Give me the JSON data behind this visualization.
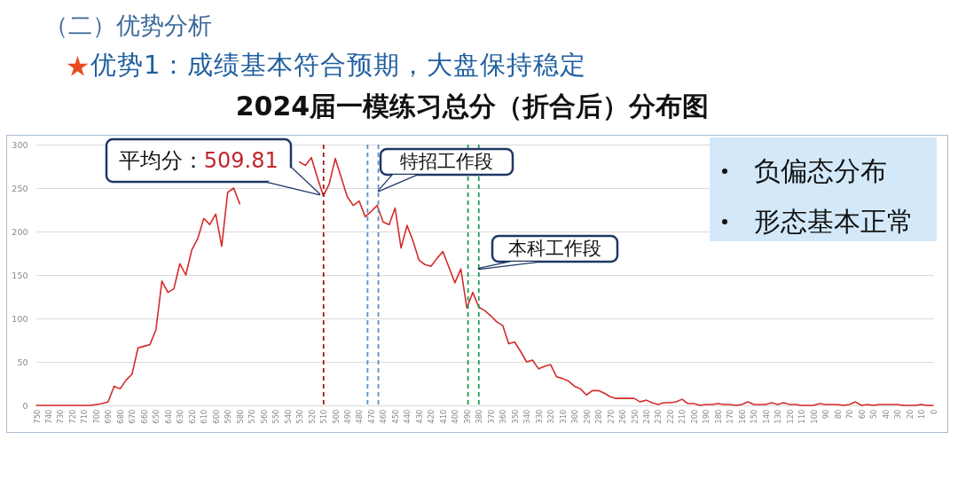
{
  "chart_data": {
    "type": "line",
    "title": "2024届一模练习总分（折合后）分布图",
    "annotations": [
      "（二）优势分析",
      "优势1：成绩基本符合预期，大盘保持稳定",
      "负偏态分布",
      "形态基本正常"
    ],
    "x": [
      750,
      745,
      740,
      735,
      730,
      725,
      720,
      715,
      710,
      705,
      700,
      695,
      690,
      685,
      680,
      675,
      670,
      665,
      660,
      655,
      650,
      645,
      640,
      635,
      630,
      625,
      620,
      615,
      610,
      605,
      600,
      595,
      590,
      585,
      580,
      575,
      570,
      565,
      560,
      555,
      550,
      545,
      540,
      535,
      530,
      525,
      520,
      515,
      510,
      505,
      500,
      495,
      490,
      485,
      480,
      475,
      470,
      465,
      460,
      455,
      450,
      445,
      440,
      435,
      430,
      425,
      420,
      415,
      410,
      405,
      400,
      395,
      390,
      385,
      380,
      375,
      370,
      365,
      360,
      355,
      350,
      345,
      340,
      335,
      330,
      325,
      320,
      315,
      310,
      305,
      300,
      295,
      290,
      285,
      280,
      275,
      270,
      265,
      260,
      255,
      250,
      245,
      240,
      235,
      230,
      225,
      220,
      215,
      210,
      205,
      200,
      195,
      190,
      185,
      180,
      175,
      170,
      165,
      160,
      155,
      150,
      145,
      140,
      135,
      130,
      125,
      120,
      115,
      110,
      105,
      100,
      95,
      90,
      85,
      80,
      75,
      70,
      65,
      60,
      55,
      50,
      45,
      40,
      35,
      30,
      25,
      20,
      15,
      10,
      5,
      0
    ],
    "series": [
      {
        "color": "#d42b2b",
        "values": [
          0,
          0,
          0,
          0,
          0,
          0,
          0,
          0,
          0,
          0,
          1,
          2,
          4,
          22,
          19,
          29,
          36,
          66,
          68,
          70,
          87,
          143,
          130,
          134,
          163,
          150,
          179,
          192,
          215,
          208,
          220,
          183,
          245,
          250,
          232,
          null,
          null,
          null,
          null,
          null,
          null,
          null,
          null,
          null,
          280,
          276,
          285,
          262,
          241,
          255,
          284,
          262,
          240,
          230,
          235,
          217,
          223,
          230,
          211,
          208,
          227,
          181,
          207,
          189,
          167,
          162,
          160,
          169,
          177,
          159,
          141,
          157,
          112,
          130,
          113,
          109,
          103,
          96,
          92,
          71,
          73,
          62,
          50,
          52,
          42,
          45,
          47,
          33,
          31,
          28,
          22,
          19,
          12,
          17,
          17,
          14,
          10,
          8,
          8,
          8,
          8,
          4,
          6,
          3,
          1,
          3,
          3,
          4,
          7,
          2,
          2,
          0,
          1,
          1,
          2,
          1,
          1,
          0,
          1,
          4,
          1,
          1,
          1,
          3,
          1,
          3,
          1,
          1,
          0,
          0,
          0,
          2,
          1,
          1,
          1,
          0,
          1,
          4,
          0,
          1,
          0,
          1,
          1,
          1,
          1,
          0,
          0,
          0,
          1,
          0,
          0
        ]
      }
    ],
    "xlim": [
      750,
      0
    ],
    "xticks": [
      750,
      740,
      730,
      720,
      710,
      700,
      690,
      680,
      670,
      660,
      650,
      640,
      630,
      620,
      610,
      600,
      590,
      580,
      570,
      560,
      550,
      540,
      530,
      520,
      510,
      500,
      490,
      480,
      470,
      460,
      450,
      440,
      430,
      420,
      410,
      400,
      390,
      380,
      370,
      360,
      350,
      340,
      330,
      320,
      310,
      300,
      290,
      280,
      270,
      260,
      250,
      240,
      230,
      220,
      210,
      200,
      190,
      180,
      170,
      160,
      150,
      140,
      130,
      120,
      110,
      100,
      90,
      80,
      70,
      60,
      50,
      40,
      30,
      20,
      10,
      0
    ],
    "ylim": [
      0,
      300
    ],
    "yticks": [
      0,
      50,
      100,
      150,
      200,
      250,
      300
    ],
    "grid": "y",
    "ref_lines": [
      {
        "axis": "x",
        "value": 509.81,
        "label": "平均分：509.81",
        "color": "#9b1b1f",
        "line_style": "dashed"
      },
      {
        "axis": "x",
        "value": 473,
        "color": "#5b8ec4",
        "line_style": "dashed"
      },
      {
        "axis": "x",
        "value": 464,
        "label": "特招工作段",
        "color": "#5b8ec4",
        "line_style": "dashed"
      },
      {
        "axis": "x",
        "value": 389,
        "color": "#1f9a55",
        "line_style": "dashed"
      },
      {
        "axis": "x",
        "value": 380,
        "label": "本科工作段",
        "color": "#1f9a55",
        "line_style": "dashed"
      }
    ]
  }
}
